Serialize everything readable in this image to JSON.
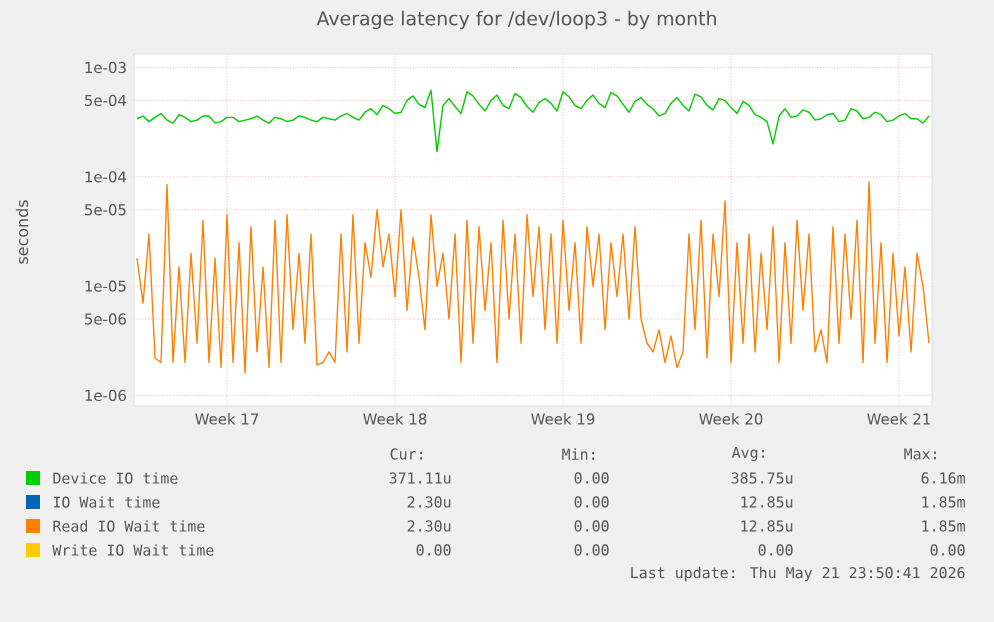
{
  "chart_data": {
    "type": "line",
    "title": "Average latency for /dev/loop3 - by month",
    "ylabel": "seconds",
    "log": "y",
    "grid": true,
    "legend": "bottom",
    "marker": "none",
    "line_style": "solid",
    "ylim": [
      8e-07,
      0.00133
    ],
    "categories": [
      null,
      null,
      null,
      null,
      null,
      null,
      null,
      null,
      null,
      null,
      null,
      null,
      null,
      null,
      null,
      "Week 17",
      null,
      null,
      null,
      null,
      null,
      null,
      null,
      null,
      null,
      null,
      null,
      null,
      null,
      null,
      null,
      null,
      null,
      null,
      null,
      null,
      null,
      null,
      null,
      null,
      null,
      null,
      null,
      "Week 18",
      null,
      null,
      null,
      null,
      null,
      null,
      null,
      null,
      null,
      null,
      null,
      null,
      null,
      null,
      null,
      null,
      null,
      null,
      null,
      null,
      null,
      null,
      null,
      null,
      null,
      null,
      null,
      "Week 19",
      null,
      null,
      null,
      null,
      null,
      null,
      null,
      null,
      null,
      null,
      null,
      null,
      null,
      null,
      null,
      null,
      null,
      null,
      null,
      null,
      null,
      null,
      null,
      null,
      null,
      null,
      null,
      "Week 20",
      null,
      null,
      null,
      null,
      null,
      null,
      null,
      null,
      null,
      null,
      null,
      null,
      null,
      null,
      null,
      null,
      null,
      null,
      null,
      null,
      null,
      null,
      null,
      null,
      null,
      null,
      null,
      "Week 21",
      null,
      null,
      null,
      null,
      null
    ],
    "yticks": [
      {
        "value": 1e-06,
        "label": "1e-06"
      },
      {
        "value": 5e-06,
        "label": "5e-06"
      },
      {
        "value": 1e-05,
        "label": "1e-05"
      },
      {
        "value": 5e-05,
        "label": "5e-05"
      },
      {
        "value": 0.0001,
        "label": "1e-04"
      },
      {
        "value": 0.0005,
        "label": "5e-04"
      },
      {
        "value": 0.001,
        "label": "1e-03"
      }
    ],
    "annotations": [
      "Cur:",
      "Min:",
      "Avg:",
      "Max:",
      "371.11u",
      "0.00",
      "385.75u",
      "6.16m",
      "2.30u",
      "0.00",
      "12.85u",
      "1.85m",
      "2.30u",
      "0.00",
      "12.85u",
      "1.85m",
      "0.00",
      "0.00",
      "0.00",
      "0.00",
      "Last update: Thu May 21 23:50:41 2026"
    ],
    "series": [
      {
        "name": "Device IO time",
        "color": "#00cc00",
        "values": [
          0.00034,
          0.00036,
          0.00032,
          0.00035,
          0.00038,
          0.00033,
          0.00031,
          0.00037,
          0.00035,
          0.00032,
          0.00033,
          0.00036,
          0.00036,
          0.00031,
          0.00032,
          0.00035,
          0.00035,
          0.00032,
          0.00033,
          0.00034,
          0.00036,
          0.00033,
          0.00031,
          0.00035,
          0.00034,
          0.00032,
          0.00033,
          0.00036,
          0.00035,
          0.00033,
          0.00032,
          0.00035,
          0.00034,
          0.00033,
          0.00036,
          0.00038,
          0.00035,
          0.00033,
          0.00039,
          0.00042,
          0.00037,
          0.00045,
          0.00042,
          0.00038,
          0.00039,
          0.0005,
          0.00055,
          0.00046,
          0.00043,
          0.00062,
          0.00017,
          0.00045,
          0.00052,
          0.00044,
          0.00038,
          0.0006,
          0.00055,
          0.00046,
          0.0004,
          0.0005,
          0.00056,
          0.00045,
          0.00042,
          0.00058,
          0.00053,
          0.00044,
          0.00039,
          0.00048,
          0.00052,
          0.00047,
          0.0004,
          0.0006,
          0.00054,
          0.00045,
          0.00042,
          0.0005,
          0.00056,
          0.00047,
          0.00043,
          0.00059,
          0.00055,
          0.00046,
          0.00039,
          0.00049,
          0.00053,
          0.00046,
          0.00042,
          0.00036,
          0.00038,
          0.00047,
          0.00053,
          0.00045,
          0.0004,
          0.00057,
          0.00054,
          0.00045,
          0.00041,
          0.00052,
          0.0005,
          0.00043,
          0.00038,
          0.00049,
          0.00045,
          0.00037,
          0.00035,
          0.00032,
          0.0002,
          0.00036,
          0.00042,
          0.00035,
          0.00036,
          0.00041,
          0.00039,
          0.00033,
          0.00034,
          0.00037,
          0.00038,
          0.00032,
          0.00033,
          0.00042,
          0.0004,
          0.00034,
          0.00035,
          0.00039,
          0.00037,
          0.00032,
          0.00033,
          0.00036,
          0.00038,
          0.00034,
          0.00034,
          0.00031,
          0.00036
        ]
      },
      {
        "name": "IO Wait time",
        "color": "#0066b3",
        "values": [
          null,
          null,
          null,
          null,
          null,
          null,
          null,
          null,
          null,
          null,
          null,
          null,
          null,
          null,
          null,
          null,
          null,
          null,
          null,
          null,
          null,
          null,
          null,
          null,
          null,
          null,
          null,
          null,
          null,
          null,
          null,
          null,
          null,
          null,
          null,
          null,
          null,
          null,
          null,
          null,
          null,
          null,
          null,
          null,
          null,
          null,
          null,
          null,
          null,
          null,
          null,
          null,
          null,
          null,
          null,
          null,
          null,
          null,
          null,
          null,
          null,
          null,
          null,
          null,
          null,
          null,
          null,
          null,
          null,
          null,
          null,
          null,
          null,
          null,
          null,
          null,
          null,
          null,
          null,
          null,
          null,
          null,
          null,
          null,
          null,
          null,
          null,
          null,
          null,
          null,
          null,
          null,
          null,
          null,
          null,
          null,
          null,
          null,
          null,
          null,
          null,
          null,
          null,
          null,
          null,
          null,
          null,
          null,
          null,
          null,
          null,
          null,
          null,
          null,
          null,
          null,
          null,
          null,
          null,
          null,
          null,
          null,
          null,
          null,
          null,
          null,
          null,
          null,
          null,
          null,
          null,
          null,
          null
        ]
      },
      {
        "name": "Read IO Wait time",
        "color": "#ff8000",
        "values": [
          1.8e-05,
          7e-06,
          3e-05,
          2.2e-06,
          2e-06,
          8.5e-05,
          2e-06,
          1.5e-05,
          2e-06,
          2e-05,
          3e-06,
          4e-05,
          2e-06,
          1.8e-05,
          1.8e-06,
          4.5e-05,
          2e-06,
          2.5e-05,
          1.6e-06,
          3.5e-05,
          2.5e-06,
          1.5e-05,
          1.8e-06,
          4e-05,
          2e-06,
          4.5e-05,
          4e-06,
          2e-05,
          3e-06,
          3e-05,
          1.9e-06,
          2e-06,
          2.5e-06,
          2e-06,
          3e-05,
          2.5e-06,
          4.5e-05,
          3e-06,
          2.5e-05,
          1.2e-05,
          5e-05,
          1.5e-05,
          3e-05,
          8e-06,
          5e-05,
          6e-06,
          2.8e-05,
          1.2e-05,
          4e-06,
          4.5e-05,
          1e-05,
          2e-05,
          5e-06,
          3e-05,
          2e-06,
          4e-05,
          3e-06,
          3.5e-05,
          6e-06,
          2.5e-05,
          2e-06,
          4e-05,
          5e-06,
          3e-05,
          3e-06,
          4.5e-05,
          8e-06,
          3.5e-05,
          4e-06,
          3e-05,
          3e-06,
          4e-05,
          6e-06,
          2.5e-05,
          3e-06,
          3.5e-05,
          1e-05,
          3e-05,
          4e-06,
          2.5e-05,
          8e-06,
          3e-05,
          5e-06,
          3.5e-05,
          5e-06,
          3e-06,
          2.5e-06,
          4e-06,
          2e-06,
          3.5e-06,
          1.8e-06,
          2.5e-06,
          3e-05,
          4e-06,
          4e-05,
          2.2e-06,
          3e-05,
          8e-06,
          6e-05,
          2e-06,
          2.5e-05,
          3e-06,
          3e-05,
          2.5e-06,
          2e-05,
          4e-06,
          3.5e-05,
          2e-06,
          2.5e-05,
          3e-06,
          4e-05,
          6e-06,
          3e-05,
          2.5e-06,
          4e-06,
          2e-06,
          3.5e-05,
          3e-06,
          3e-05,
          5e-06,
          4e-05,
          2e-06,
          9e-05,
          3e-06,
          2.5e-05,
          2e-06,
          2e-05,
          3.5e-06,
          1.5e-05,
          2.5e-06,
          2e-05,
          1e-05,
          3e-06
        ]
      },
      {
        "name": "Write IO Wait time",
        "color": "#ffcc00",
        "values": [
          null,
          null,
          null,
          null,
          null,
          null,
          null,
          null,
          null,
          null,
          null,
          null,
          null,
          null,
          null,
          null,
          null,
          null,
          null,
          null,
          null,
          null,
          null,
          null,
          null,
          null,
          null,
          null,
          null,
          null,
          null,
          null,
          null,
          null,
          null,
          null,
          null,
          null,
          null,
          null,
          null,
          null,
          null,
          null,
          null,
          null,
          null,
          null,
          null,
          null,
          null,
          null,
          null,
          null,
          null,
          null,
          null,
          null,
          null,
          null,
          null,
          null,
          null,
          null,
          null,
          null,
          null,
          null,
          null,
          null,
          null,
          null,
          null,
          null,
          null,
          null,
          null,
          null,
          null,
          null,
          null,
          null,
          null,
          null,
          null,
          null,
          null,
          null,
          null,
          null,
          null,
          null,
          null,
          null,
          null,
          null,
          null,
          null,
          null,
          null,
          null,
          null,
          null,
          null,
          null,
          null,
          null,
          null,
          null,
          null,
          null,
          null,
          null,
          null,
          null,
          null,
          null,
          null,
          null,
          null,
          null,
          null,
          null,
          null,
          null,
          null,
          null,
          null,
          null,
          null,
          null,
          null,
          null
        ]
      }
    ]
  }
}
